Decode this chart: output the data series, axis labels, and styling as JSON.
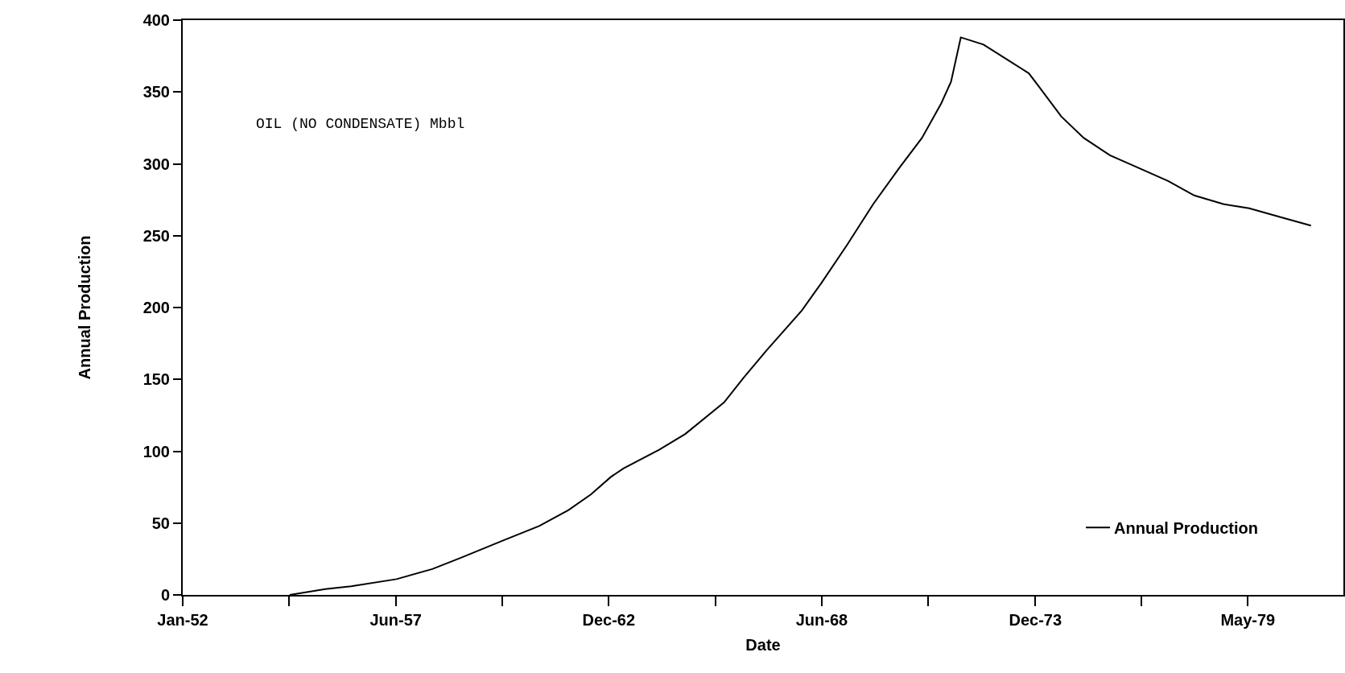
{
  "chart_data": {
    "type": "line",
    "xlabel": "Date",
    "ylabel": "Annual Production",
    "annotations": [
      "OIL (NO CONDENSATE) Mbbl"
    ],
    "x": [
      "1954-10",
      "1955-09",
      "1956-05",
      "1957-07",
      "1958-06",
      "1959-03",
      "1960-04",
      "1961-03",
      "1961-12",
      "1962-07",
      "1963-01",
      "1963-05",
      "1964-04",
      "1964-12",
      "1965-12",
      "1966-06",
      "1967-01",
      "1967-12",
      "1968-06",
      "1969-02",
      "1969-10",
      "1970-06",
      "1971-01",
      "1971-07",
      "1971-10",
      "1972-01",
      "1972-08",
      "1973-03",
      "1973-10",
      "1974-01",
      "1974-08",
      "1975-03",
      "1975-11",
      "1976-08",
      "1977-05",
      "1978-01",
      "1978-10",
      "1979-06",
      "1980-05",
      "1981-01"
    ],
    "series": [
      {
        "name": "Annual Production",
        "color": "#000000",
        "values": [
          0,
          4,
          6,
          11,
          18,
          26,
          38,
          48,
          59,
          70,
          82,
          88,
          101,
          112,
          134,
          151,
          170,
          198,
          217,
          244,
          272,
          297,
          318,
          342,
          357,
          388,
          383,
          373,
          363,
          354,
          333,
          318,
          306,
          297,
          288,
          278,
          272,
          269,
          262,
          257
        ]
      }
    ],
    "xlim": [
      "1952-01-01",
      "1981-11-01"
    ],
    "xticks": [
      {
        "value": "1952-01-01",
        "label": "Jan-52"
      },
      {
        "value": "1954-09-27",
        "label": null
      },
      {
        "value": "1957-06-23",
        "label": "Jun-57"
      },
      {
        "value": "1960-03-19",
        "label": null
      },
      {
        "value": "1962-12-14",
        "label": "Dec-62"
      },
      {
        "value": "1965-09-09",
        "label": null
      },
      {
        "value": "1968-06-05",
        "label": "Jun-68"
      },
      {
        "value": "1971-03-02",
        "label": null
      },
      {
        "value": "1973-12-01",
        "label": "Dec-73"
      },
      {
        "value": "1976-08-22",
        "label": null
      },
      {
        "value": "1979-05-19",
        "label": "May-79"
      }
    ],
    "ylim": [
      0,
      400
    ],
    "yticks": [
      0,
      50,
      100,
      150,
      200,
      250,
      300,
      350,
      400
    ],
    "grid": false,
    "legend": "bottom right",
    "marker": "none",
    "line_style": "solid"
  }
}
